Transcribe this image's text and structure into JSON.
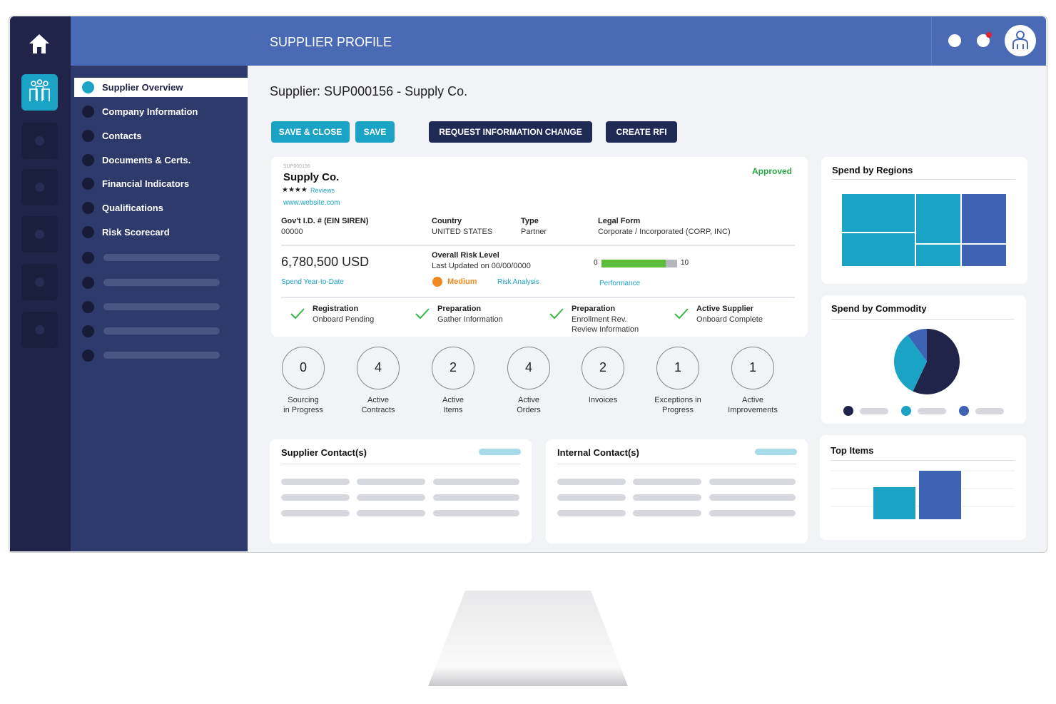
{
  "header": {
    "title": "SUPPLIER PROFILE"
  },
  "nav": [
    "Supplier Overview",
    "Company Information",
    "Contacts",
    "Documents & Certs.",
    "Financial Indicators",
    "Qualifications",
    "Risk Scorecard"
  ],
  "heading": "Supplier: SUP000156 - Supply Co.",
  "buttons": [
    "SAVE & CLOSE",
    "SAVE",
    "REQUEST INFORMATION CHANGE",
    "CREATE RFI"
  ],
  "card": {
    "id": "SUP000156",
    "name": "Supply Co.",
    "stars": "★★★★",
    "reviews": "Reviews",
    "website": "www.website.com",
    "status": "Approved"
  },
  "fields": [
    {
      "label": "Gov't I.D. # (EIN SIREN)",
      "value": "00000"
    },
    {
      "label": "Country",
      "value": "UNITED STATES"
    },
    {
      "label": "Type",
      "value": "Partner"
    },
    {
      "label": "Legal Form",
      "value": "Corporate / Incorporated (CORP, INC)"
    }
  ],
  "spend": {
    "amount": "6,780,500 USD",
    "label": "Spend Year-to-Date"
  },
  "risk": {
    "label": "Overall Risk Level",
    "updated": "Last Updated on 00/00/0000",
    "level": "Medium",
    "link": "Risk Analysis",
    "performance": {
      "label": "Performance",
      "min": 0,
      "max": 10,
      "value": 8.5
    }
  },
  "steps": [
    {
      "title": "Registration",
      "lines": [
        "Onboard Pending"
      ]
    },
    {
      "title": "Preparation",
      "lines": [
        "Gather Information"
      ]
    },
    {
      "title": "Preparation",
      "lines": [
        "Enrollment Rev.",
        "Review Information"
      ]
    },
    {
      "title": "Active Supplier",
      "lines": [
        "Onboard Complete"
      ]
    }
  ],
  "stats": [
    {
      "value": "0",
      "lines": [
        "Sourcing",
        "in Progress"
      ]
    },
    {
      "value": "4",
      "lines": [
        "Active",
        "Contracts"
      ]
    },
    {
      "value": "2",
      "lines": [
        "Active",
        "Items"
      ]
    },
    {
      "value": "4",
      "lines": [
        "Active",
        "Orders"
      ]
    },
    {
      "value": "2",
      "lines": [
        "Invoices"
      ]
    },
    {
      "value": "1",
      "lines": [
        "Exceptions in",
        "Progress"
      ]
    },
    {
      "value": "1",
      "lines": [
        "Active",
        "Improvements"
      ]
    }
  ],
  "contacts": [
    "Supplier Contact(s)",
    "Internal Contact(s)"
  ],
  "regions": {
    "title": "Spend by Regions"
  },
  "commodity": {
    "title": "Spend by Commodity",
    "type": "pie",
    "values": [
      57,
      33,
      10
    ],
    "colors": [
      "#1f2448",
      "#1ba3c6",
      "#3f63b4"
    ]
  },
  "top_items": {
    "title": "Top Items",
    "type": "bar",
    "values": [
      45,
      68
    ],
    "colors": [
      "#1ba3c6",
      "#3f63b4"
    ]
  }
}
